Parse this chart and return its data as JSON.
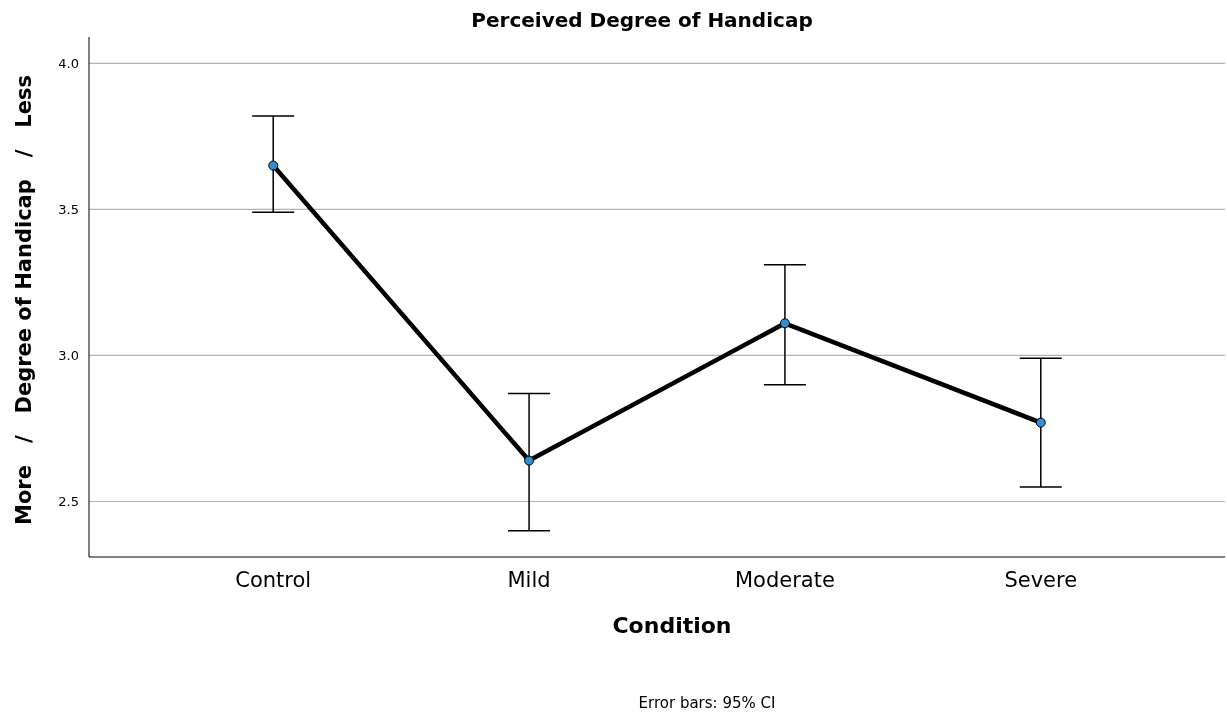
{
  "chart_data": {
    "type": "line",
    "title": "Perceived Degree of Handicap",
    "xlabel": "Condition",
    "ylabel": "More   /   Degree of Handicap   /   Less",
    "categories": [
      "Control",
      "Mild",
      "Moderate",
      "Severe"
    ],
    "color": "#000000",
    "values": [
      3.65,
      2.64,
      3.11,
      2.77
    ],
    "errors": [
      [
        3.49,
        3.82
      ],
      [
        2.4,
        2.87
      ],
      [
        2.9,
        3.31
      ],
      [
        2.55,
        2.99
      ]
    ],
    "ylim": [
      2.31,
      4.09
    ],
    "yticks": [
      {
        "value": 2.5,
        "label": "2.5"
      },
      {
        "value": 3,
        "label": "3.0"
      },
      {
        "value": 3.5,
        "label": "3.5"
      },
      {
        "value": 4,
        "label": "4.0"
      }
    ],
    "grid": "y",
    "marker": "circle",
    "annotations": [
      "Error bars: 95% CI"
    ]
  }
}
